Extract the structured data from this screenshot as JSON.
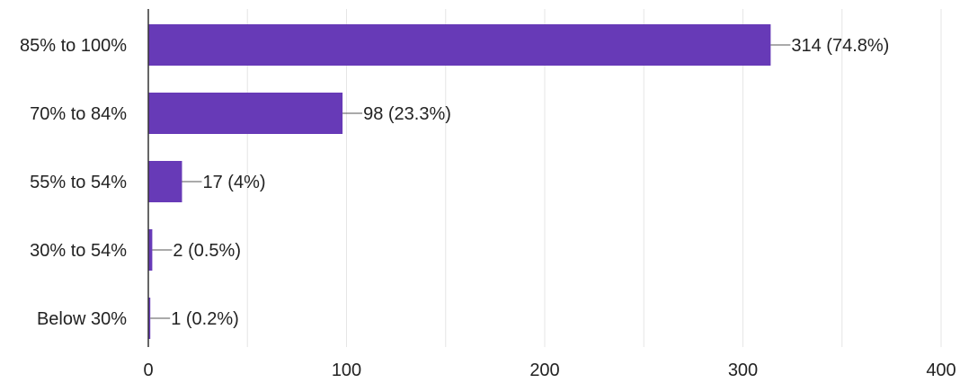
{
  "chart_data": {
    "type": "bar",
    "orientation": "horizontal",
    "categories": [
      "85% to 100%",
      "70% to 84%",
      "55% to 54%",
      "30% to 54%",
      "Below 30%"
    ],
    "values": [
      314,
      98,
      17,
      2,
      1
    ],
    "data_labels": [
      "314 (74.8%)",
      "98 (23.3%)",
      "17 (4%)",
      "2 (0.5%)",
      "1 (0.2%)"
    ],
    "xlim": [
      0,
      400
    ],
    "x_ticks": [
      0,
      100,
      200,
      300,
      400
    ],
    "x_tick_labels": [
      "0",
      "100",
      "200",
      "300",
      "400"
    ],
    "minor_grid_step": 50,
    "grid": true,
    "bar_color": "#673ab7",
    "title": "",
    "xlabel": "",
    "ylabel": ""
  }
}
